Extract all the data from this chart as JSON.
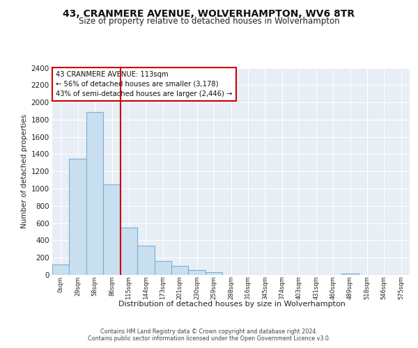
{
  "title1": "43, CRANMERE AVENUE, WOLVERHAMPTON, WV6 8TR",
  "title2": "Size of property relative to detached houses in Wolverhampton",
  "xlabel": "Distribution of detached houses by size in Wolverhampton",
  "ylabel": "Number of detached properties",
  "bin_labels": [
    "0sqm",
    "29sqm",
    "58sqm",
    "86sqm",
    "115sqm",
    "144sqm",
    "173sqm",
    "201sqm",
    "230sqm",
    "259sqm",
    "288sqm",
    "316sqm",
    "345sqm",
    "374sqm",
    "403sqm",
    "431sqm",
    "460sqm",
    "489sqm",
    "518sqm",
    "546sqm",
    "575sqm"
  ],
  "bar_heights": [
    125,
    1350,
    1890,
    1050,
    550,
    340,
    165,
    105,
    60,
    30,
    0,
    0,
    0,
    0,
    0,
    0,
    0,
    20,
    0,
    0,
    0
  ],
  "bar_fill_color": "#c8dff0",
  "bar_edge_color": "#7bafd4",
  "highlight_color": "#cc0000",
  "ylim": [
    0,
    2400
  ],
  "yticks": [
    0,
    200,
    400,
    600,
    800,
    1000,
    1200,
    1400,
    1600,
    1800,
    2000,
    2200,
    2400
  ],
  "annotation_line1": "43 CRANMERE AVENUE: 113sqm",
  "annotation_line2": "← 56% of detached houses are smaller (3,178)",
  "annotation_line3": "43% of semi-detached houses are larger (2,446) →",
  "footer1": "Contains HM Land Registry data © Crown copyright and database right 2024.",
  "footer2": "Contains public sector information licensed under the Open Government Licence v3.0.",
  "bg_color": "#ffffff",
  "plot_bg_color": "#e8eef5",
  "grid_color": "#ffffff"
}
